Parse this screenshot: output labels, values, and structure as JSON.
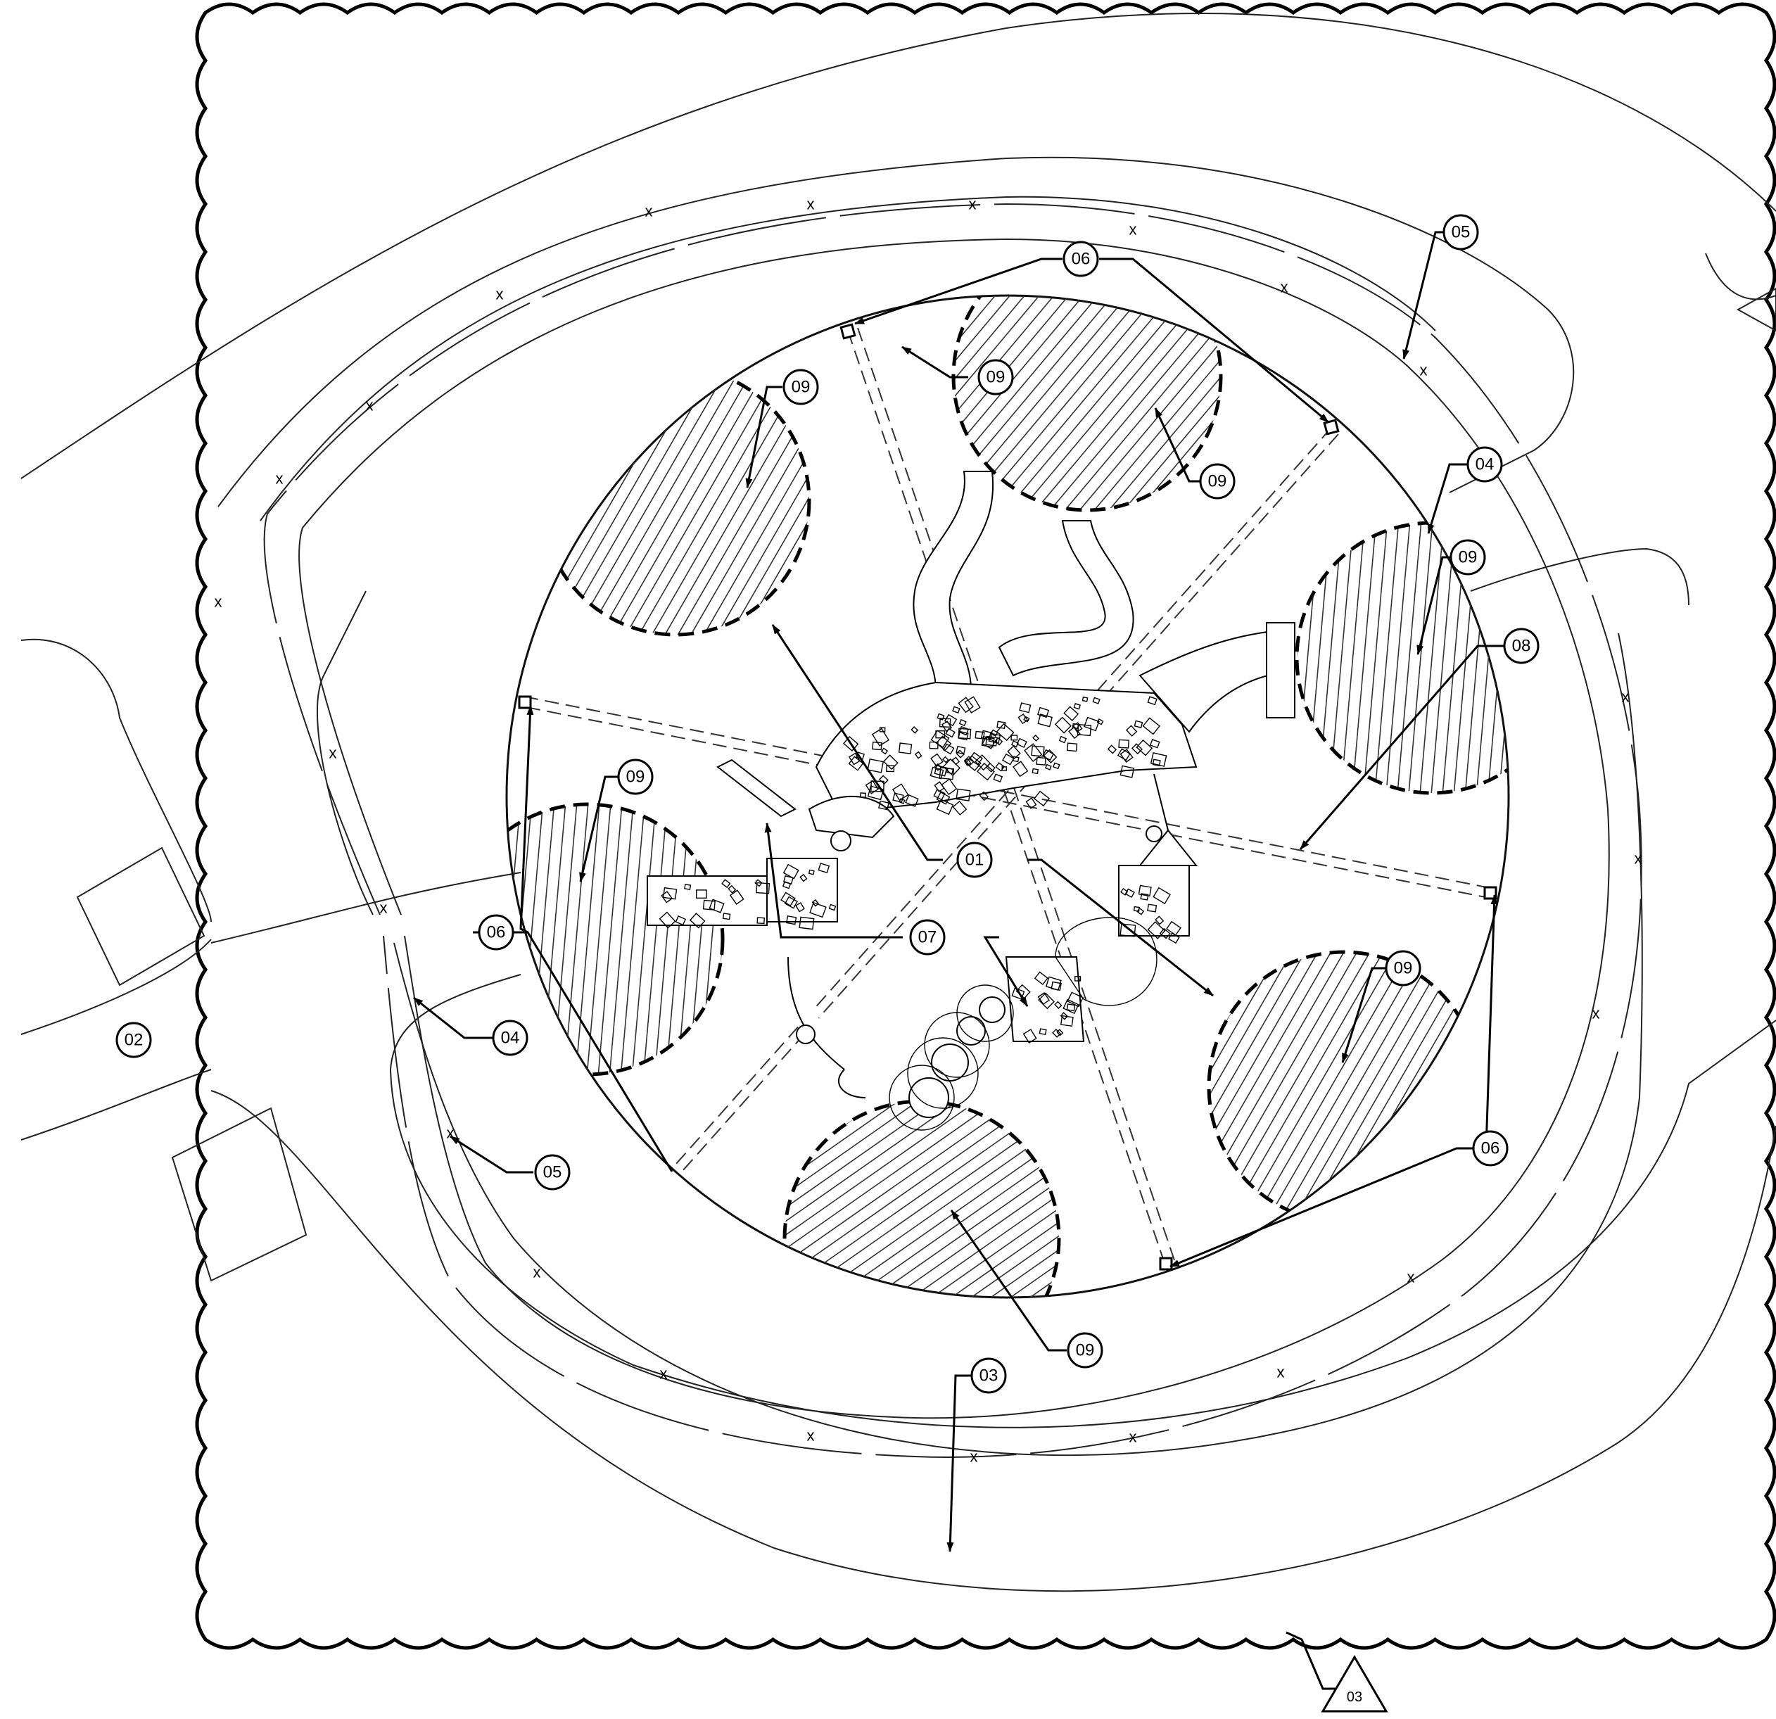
{
  "drawing": {
    "view": "site plan",
    "callouts": [
      {
        "id": "c01",
        "label": "01"
      },
      {
        "id": "c02",
        "label": "02"
      },
      {
        "id": "c03",
        "label": "03"
      },
      {
        "id": "c04a",
        "label": "04"
      },
      {
        "id": "c04b",
        "label": "04"
      },
      {
        "id": "c05a",
        "label": "05"
      },
      {
        "id": "c05b",
        "label": "05"
      },
      {
        "id": "c06a",
        "label": "06"
      },
      {
        "id": "c06b",
        "label": "06"
      },
      {
        "id": "c06c",
        "label": "06"
      },
      {
        "id": "c07",
        "label": "07"
      },
      {
        "id": "c08",
        "label": "08"
      },
      {
        "id": "c09a",
        "label": "09"
      },
      {
        "id": "c09b",
        "label": "09"
      },
      {
        "id": "c09c",
        "label": "09"
      },
      {
        "id": "c09d",
        "label": "09"
      },
      {
        "id": "c09e",
        "label": "09"
      },
      {
        "id": "c09f",
        "label": "09"
      },
      {
        "id": "c09g",
        "label": "09"
      }
    ],
    "fence_marker": "x",
    "revision_delta": {
      "label": "03"
    }
  }
}
